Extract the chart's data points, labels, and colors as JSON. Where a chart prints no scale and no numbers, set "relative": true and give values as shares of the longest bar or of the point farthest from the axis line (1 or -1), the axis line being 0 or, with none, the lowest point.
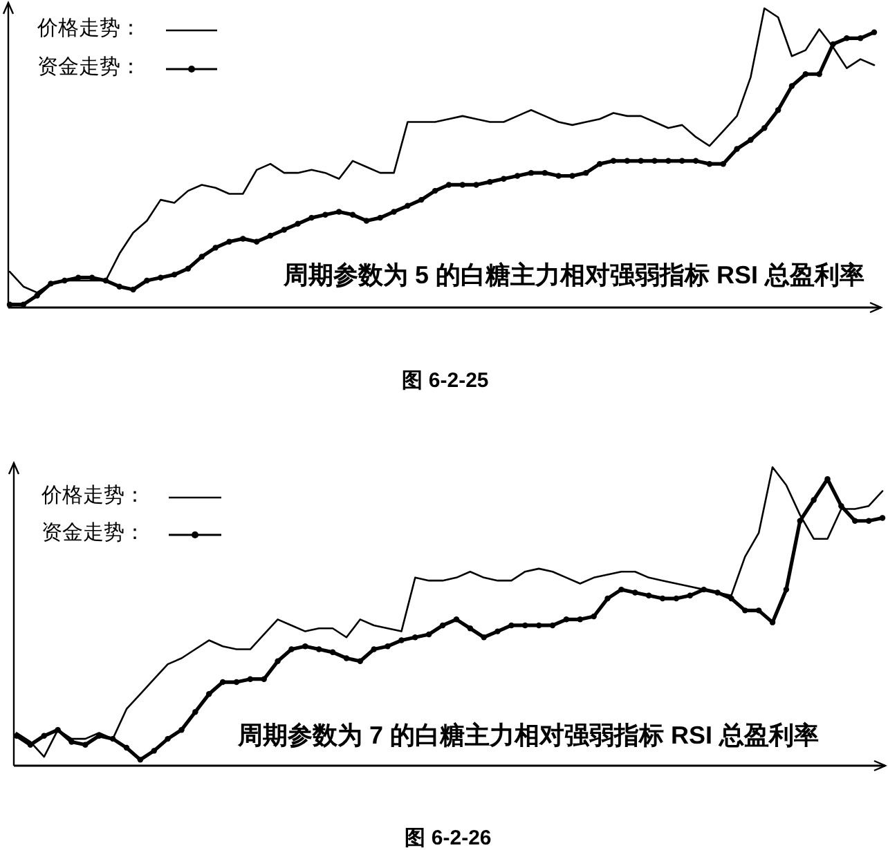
{
  "chart_data": [
    {
      "type": "line",
      "title": "周期参数为 5 的白糖主力相对强弱指标 RSI 总盈利率",
      "annotations": [
        "图 6-2-25"
      ],
      "relative": true,
      "legend": "top left",
      "categories": [
        null,
        null,
        null,
        null,
        null,
        null,
        null,
        null,
        null,
        null,
        null,
        null,
        null,
        null,
        null,
        null,
        null,
        null,
        null,
        null,
        null,
        null,
        null,
        null,
        null,
        null,
        null,
        null,
        null,
        null,
        null,
        null,
        null,
        null,
        null,
        null,
        null,
        null,
        null,
        null,
        null,
        null,
        null,
        null,
        null,
        null,
        null,
        null,
        null,
        null,
        null,
        null,
        null,
        null,
        null,
        null,
        null,
        null,
        null,
        null,
        null,
        null,
        null,
        null
      ],
      "series": [
        {
          "name": "价格走势：",
          "color": "#000000",
          "values": [
            0.12,
            0.07,
            0.05,
            0.08,
            0.09,
            0.09,
            0.09,
            0.09,
            0.18,
            0.25,
            0.29,
            0.36,
            0.35,
            0.39,
            0.41,
            0.4,
            0.38,
            0.38,
            0.46,
            0.48,
            0.45,
            0.45,
            0.46,
            0.45,
            0.43,
            0.49,
            0.47,
            0.45,
            0.45,
            0.62,
            0.62,
            0.62,
            0.63,
            0.64,
            0.63,
            0.62,
            0.62,
            0.64,
            0.66,
            0.64,
            0.62,
            0.61,
            0.62,
            0.63,
            0.65,
            0.64,
            0.64,
            0.62,
            0.6,
            0.61,
            0.57,
            0.54,
            0.59,
            0.64,
            0.77,
            1,
            0.97,
            0.84,
            0.86,
            0.93,
            0.87,
            0.8,
            0.83,
            0.81
          ]
        },
        {
          "name": "资金走势：",
          "color": "#000000",
          "marker": "circle",
          "values": [
            0.01,
            0.01,
            0.04,
            0.08,
            0.09,
            0.1,
            0.1,
            0.09,
            0.07,
            0.06,
            0.09,
            0.1,
            0.11,
            0.13,
            0.17,
            0.2,
            0.22,
            0.23,
            0.22,
            0.24,
            0.26,
            0.28,
            0.3,
            0.31,
            0.32,
            0.31,
            0.29,
            0.3,
            0.32,
            0.34,
            0.36,
            0.39,
            0.41,
            0.41,
            0.41,
            0.42,
            0.43,
            0.44,
            0.45,
            0.45,
            0.44,
            0.44,
            0.45,
            0.48,
            0.49,
            0.49,
            0.49,
            0.49,
            0.49,
            0.49,
            0.49,
            0.48,
            0.48,
            0.53,
            0.56,
            0.6,
            0.66,
            0.74,
            0.78,
            0.78,
            0.88,
            0.9,
            0.9,
            0.92
          ]
        }
      ]
    },
    {
      "type": "line",
      "title": "周期参数为 7 的白糖主力相对强弱指标 RSI 总盈利率",
      "annotations": [
        "图 6-2-26"
      ],
      "relative": true,
      "legend": "top left",
      "categories": [
        null,
        null,
        null,
        null,
        null,
        null,
        null,
        null,
        null,
        null,
        null,
        null,
        null,
        null,
        null,
        null,
        null,
        null,
        null,
        null,
        null,
        null,
        null,
        null,
        null,
        null,
        null,
        null,
        null,
        null,
        null,
        null,
        null,
        null,
        null,
        null,
        null,
        null,
        null,
        null,
        null,
        null,
        null,
        null,
        null,
        null,
        null,
        null,
        null,
        null,
        null,
        null,
        null,
        null,
        null,
        null,
        null,
        null,
        null,
        null,
        null,
        null,
        null,
        null
      ],
      "series": [
        {
          "name": "价格走势：",
          "color": "#000000",
          "values": [
            0.11,
            0.08,
            0.03,
            0.12,
            0.09,
            0.09,
            0.11,
            0.09,
            0.19,
            0.24,
            0.29,
            0.34,
            0.36,
            0.39,
            0.42,
            0.4,
            0.39,
            0.39,
            0.44,
            0.49,
            0.47,
            0.45,
            0.46,
            0.46,
            0.43,
            0.49,
            0.47,
            0.46,
            0.45,
            0.63,
            0.62,
            0.62,
            0.63,
            0.65,
            0.63,
            0.62,
            0.62,
            0.65,
            0.66,
            0.65,
            0.63,
            0.61,
            0.63,
            0.64,
            0.65,
            0.65,
            0.63,
            0.62,
            0.61,
            0.6,
            0.59,
            0.58,
            0.57,
            0.7,
            0.78,
            1,
            0.94,
            0.84,
            0.76,
            0.76,
            0.86,
            0.86,
            0.87,
            0.92
          ]
        },
        {
          "name": "资金走势：",
          "color": "#000000",
          "marker": "circle",
          "values": [
            0.1,
            0.07,
            0.1,
            0.12,
            0.08,
            0.07,
            0.1,
            0.09,
            0.06,
            0.02,
            0.05,
            0.09,
            0.12,
            0.18,
            0.24,
            0.28,
            0.28,
            0.29,
            0.29,
            0.35,
            0.39,
            0.4,
            0.39,
            0.38,
            0.36,
            0.35,
            0.39,
            0.4,
            0.42,
            0.43,
            0.44,
            0.47,
            0.49,
            0.46,
            0.43,
            0.45,
            0.47,
            0.47,
            0.47,
            0.47,
            0.49,
            0.49,
            0.5,
            0.56,
            0.59,
            0.58,
            0.57,
            0.56,
            0.56,
            0.57,
            0.59,
            0.58,
            0.56,
            0.52,
            0.52,
            0.48,
            0.59,
            0.82,
            0.89,
            0.96,
            0.87,
            0.82,
            0.82,
            0.83
          ]
        }
      ]
    }
  ]
}
